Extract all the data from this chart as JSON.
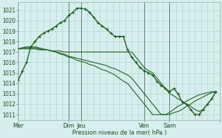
{
  "background_color": "#d6eeee",
  "grid_color": "#b0d8cc",
  "line_color": "#1a5c1a",
  "ylabel_text": "Pression niveau de la mer( hPa )",
  "ylim": [
    1010.5,
    1021.8
  ],
  "yticks": [
    1011,
    1012,
    1013,
    1014,
    1015,
    1016,
    1017,
    1018,
    1019,
    1020,
    1021
  ],
  "xtick_positions": [
    0,
    48,
    60,
    120,
    144,
    192
  ],
  "xtick_labels": [
    "Mer",
    "Dim",
    "Jeu",
    "Ven",
    "Sam",
    ""
  ],
  "day_vlines": [
    0,
    48,
    60,
    120,
    144,
    192
  ],
  "xlim": [
    0,
    192
  ],
  "series0": [
    1014.3,
    1015.2,
    1016.0,
    1017.5,
    1018.0,
    1018.5,
    1018.8,
    1019.0,
    1019.2,
    1019.5,
    1019.8,
    1020.0,
    1020.5,
    1020.8,
    1021.2,
    1021.2,
    1021.1,
    1020.8,
    1020.3,
    1019.8,
    1019.5,
    1019.2,
    1018.8,
    1018.5,
    1018.5,
    1018.5,
    1017.2,
    1016.5,
    1016.0,
    1015.5,
    1015.2,
    1015.0,
    1014.8,
    1014.2,
    1013.8,
    1013.5,
    1013.2,
    1013.5,
    1013.0,
    1012.2,
    1012.0,
    1011.5,
    1011.0,
    1011.0,
    1011.5,
    1012.0,
    1012.5,
    1013.2
  ],
  "series1": [
    1017.3,
    1017.3,
    1017.3,
    1017.3,
    1017.3,
    1017.2,
    1017.2,
    1017.2,
    1017.1,
    1017.1,
    1017.1,
    1017.0,
    1017.0,
    1017.0,
    1017.0,
    1017.0,
    1017.0,
    1017.0,
    1017.0,
    1017.0,
    1017.0,
    1017.0,
    1017.0,
    1017.0,
    1017.0,
    1017.0,
    1017.0,
    1017.0,
    1016.5,
    1016.0,
    1015.5,
    1015.2,
    1015.0,
    1014.5,
    1014.0,
    1013.5,
    1013.0,
    1012.8,
    1012.5,
    1012.3,
    1012.0,
    1011.8,
    1011.5,
    1011.3,
    1011.5,
    1012.0,
    1012.5,
    1013.2
  ],
  "series2": [
    1017.3,
    1017.4,
    1017.4,
    1017.4,
    1017.4,
    1017.3,
    1017.2,
    1017.2,
    1017.1,
    1017.0,
    1016.9,
    1016.8,
    1016.6,
    1016.5,
    1016.4,
    1016.3,
    1016.2,
    1016.1,
    1016.0,
    1015.9,
    1015.8,
    1015.7,
    1015.5,
    1015.4,
    1015.2,
    1015.0,
    1014.8,
    1014.5,
    1014.0,
    1013.5,
    1013.0,
    1012.5,
    1012.0,
    1011.5,
    1011.0,
    1011.0,
    1011.0,
    1011.2,
    1011.3,
    1011.5,
    1011.8,
    1012.0,
    1012.3,
    1012.5,
    1012.7,
    1012.9,
    1013.1,
    1013.2
  ],
  "series3": [
    1017.3,
    1017.4,
    1017.5,
    1017.5,
    1017.5,
    1017.4,
    1017.3,
    1017.2,
    1017.1,
    1017.0,
    1016.8,
    1016.7,
    1016.5,
    1016.4,
    1016.2,
    1016.1,
    1016.0,
    1015.8,
    1015.7,
    1015.5,
    1015.3,
    1015.2,
    1015.0,
    1014.8,
    1014.5,
    1014.2,
    1014.0,
    1013.5,
    1013.0,
    1012.5,
    1012.0,
    1011.5,
    1011.0,
    1011.0,
    1011.0,
    1011.0,
    1011.2,
    1011.5,
    1011.8,
    1012.0,
    1012.3,
    1012.5,
    1012.7,
    1012.9,
    1013.0,
    1013.1,
    1013.2,
    1013.2
  ]
}
